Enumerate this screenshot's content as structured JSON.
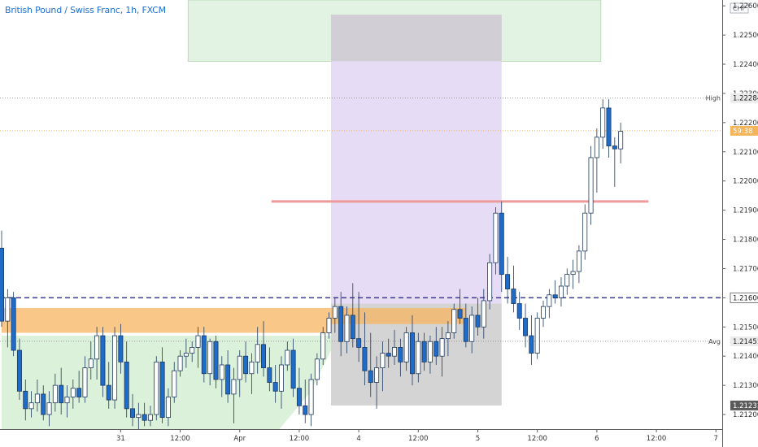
{
  "chart_data": {
    "type": "candlestick",
    "title": "British Pound / Swiss Franc, 1h, FXCM",
    "currency": "CHF",
    "colors": {
      "up": "#ffffff",
      "down": "#1f6bc8",
      "outline": "#1e3a60",
      "high_line": "#9a9a9a",
      "price_line": "#f3b45c",
      "resistance": "#ef9a9a",
      "dashed_level": "#3d3a8f",
      "target_zone": "#e3f3e3",
      "purple_zone": "#e6dcf5",
      "gray_zone": "#cfcfcf",
      "orange_band": "#f7b460",
      "green_fill": "#d6efd4"
    },
    "y_axis": {
      "ticks": [
        "1.22600",
        "1.22500",
        "1.22400",
        "1.22300",
        "1.22200",
        "1.22100",
        "1.22000",
        "1.21900",
        "1.21800",
        "1.21700",
        "1.21600",
        "1.21500",
        "1.21400",
        "1.21300",
        "1.21200"
      ],
      "ylim": [
        1.2115,
        1.2262
      ]
    },
    "x_axis": {
      "labels": [
        {
          "text": "31",
          "t": 30
        },
        {
          "text": "12:00",
          "t": 45
        },
        {
          "text": "Apr",
          "t": 60
        },
        {
          "text": "12:00",
          "t": 75
        },
        {
          "text": "4",
          "t": 90
        },
        {
          "text": "12:00",
          "t": 105
        },
        {
          "text": "5",
          "t": 120
        },
        {
          "text": "12:00",
          "t": 135
        },
        {
          "text": "6",
          "t": 150
        },
        {
          "text": "12:00",
          "t": 165
        },
        {
          "text": "7",
          "t": 180
        }
      ],
      "xlim": [
        0,
        182
      ]
    },
    "price_labels": [
      {
        "text": "1.22284",
        "value": 1.22284,
        "tag": "High",
        "style": "gray"
      },
      {
        "text": "59:38",
        "value": 1.22172,
        "style": "orange"
      },
      {
        "text": "1.21600",
        "value": 1.216,
        "style": "outline"
      },
      {
        "text": "1.21451",
        "value": 1.21451,
        "tag": "Avg",
        "style": "gray"
      },
      {
        "text": "1.21231",
        "value": 1.21231,
        "style": "dark"
      }
    ],
    "levels": {
      "high": 1.22284,
      "current_price": 1.22172,
      "resistance": {
        "value": 1.2193,
        "t_start": 68,
        "t_end": 163
      },
      "dashed": 1.216,
      "avg": 1.21451
    },
    "zones": [
      {
        "kind": "target",
        "t_start": 47,
        "t_end": 151,
        "y_top": 1.2262,
        "y_bottom": 1.2241
      },
      {
        "kind": "purple",
        "t_start": 83,
        "t_end": 126,
        "y_top": 1.2257,
        "y_bottom": 1.2158
      },
      {
        "kind": "gray",
        "t_start": 83,
        "t_end": 126,
        "y_top": 1.2158,
        "y_bottom": 1.21231
      },
      {
        "kind": "gray-top",
        "t_start": 83,
        "t_end": 126,
        "y_top": 1.2257,
        "y_bottom": 1.2241
      },
      {
        "kind": "orange",
        "t_start": 0,
        "t_end": 83,
        "y_top": 1.21565,
        "y_bottom": 1.2148
      },
      {
        "kind": "orange",
        "t_start": 83,
        "t_end": 117,
        "y_top": 1.21565,
        "y_bottom": 1.2151
      }
    ],
    "green_area": [
      [
        0,
        1.2147
      ],
      [
        0,
        1.2115
      ],
      [
        70,
        1.2115
      ],
      [
        78,
        1.2128
      ],
      [
        83,
        1.2142
      ],
      [
        83,
        1.2147
      ]
    ],
    "candles": [
      [
        0,
        1.2177,
        1.2183,
        1.215,
        1.2152
      ],
      [
        1.5,
        1.2152,
        1.2163,
        1.2143,
        1.216
      ],
      [
        3,
        1.216,
        1.2162,
        1.214,
        1.2142
      ],
      [
        4.5,
        1.2142,
        1.2146,
        1.2125,
        1.2128
      ],
      [
        6,
        1.2128,
        1.2132,
        1.2118,
        1.2122
      ],
      [
        7.5,
        1.2122,
        1.2128,
        1.2119,
        1.2124
      ],
      [
        9,
        1.2124,
        1.2132,
        1.2121,
        1.2127
      ],
      [
        10.5,
        1.2127,
        1.213,
        1.2118,
        1.212
      ],
      [
        12,
        1.212,
        1.2128,
        1.2116,
        1.2124
      ],
      [
        13.5,
        1.2124,
        1.2134,
        1.2121,
        1.213
      ],
      [
        15,
        1.213,
        1.2136,
        1.212,
        1.2124
      ],
      [
        16.5,
        1.2124,
        1.213,
        1.2119,
        1.2126
      ],
      [
        18,
        1.2126,
        1.2132,
        1.2122,
        1.2129
      ],
      [
        19.5,
        1.2129,
        1.2135,
        1.2124,
        1.2126
      ],
      [
        21,
        1.2126,
        1.214,
        1.2124,
        1.2136
      ],
      [
        22.5,
        1.2136,
        1.2145,
        1.2132,
        1.2139
      ],
      [
        24,
        1.2139,
        1.215,
        1.2132,
        1.2147
      ],
      [
        25.5,
        1.2147,
        1.215,
        1.2126,
        1.213
      ],
      [
        27,
        1.213,
        1.2138,
        1.2122,
        1.2125
      ],
      [
        28.5,
        1.2125,
        1.215,
        1.2122,
        1.2147
      ],
      [
        30,
        1.2147,
        1.2151,
        1.2134,
        1.2138
      ],
      [
        31.5,
        1.2138,
        1.2145,
        1.2119,
        1.2122
      ],
      [
        33,
        1.2122,
        1.2127,
        1.2116,
        1.2119
      ],
      [
        34.5,
        1.2119,
        1.2124,
        1.2115,
        1.212
      ],
      [
        36,
        1.212,
        1.2124,
        1.2116,
        1.2118
      ],
      [
        37.5,
        1.2118,
        1.2123,
        1.2116,
        1.212
      ],
      [
        39,
        1.212,
        1.214,
        1.2118,
        1.2138
      ],
      [
        40.5,
        1.2138,
        1.2143,
        1.2117,
        1.2119
      ],
      [
        42,
        1.2119,
        1.2129,
        1.2116,
        1.2126
      ],
      [
        43.5,
        1.2126,
        1.2138,
        1.2124,
        1.2135
      ],
      [
        45,
        1.2135,
        1.2142,
        1.2133,
        1.214
      ],
      [
        46.5,
        1.214,
        1.2146,
        1.2136,
        1.2141
      ],
      [
        48,
        1.2141,
        1.2145,
        1.2138,
        1.2143
      ],
      [
        49.5,
        1.2143,
        1.215,
        1.2136,
        1.2147
      ],
      [
        51,
        1.2147,
        1.215,
        1.2131,
        1.2134
      ],
      [
        52.5,
        1.2134,
        1.2146,
        1.213,
        1.2145
      ],
      [
        54,
        1.2145,
        1.2147,
        1.2129,
        1.2132
      ],
      [
        55.5,
        1.2132,
        1.214,
        1.2126,
        1.2137
      ],
      [
        57,
        1.2137,
        1.2142,
        1.2124,
        1.2127
      ],
      [
        58.5,
        1.2127,
        1.2136,
        1.2117,
        1.2132
      ],
      [
        60,
        1.2132,
        1.2142,
        1.2126,
        1.214
      ],
      [
        61.5,
        1.214,
        1.2145,
        1.2131,
        1.2134
      ],
      [
        63,
        1.2134,
        1.2141,
        1.2127,
        1.2138
      ],
      [
        64.5,
        1.2138,
        1.215,
        1.2134,
        1.2144
      ],
      [
        66,
        1.2144,
        1.2152,
        1.2133,
        1.2136
      ],
      [
        67.5,
        1.2136,
        1.2143,
        1.2128,
        1.2131
      ],
      [
        69,
        1.2131,
        1.2137,
        1.2124,
        1.2128
      ],
      [
        70.5,
        1.2128,
        1.214,
        1.2122,
        1.2137
      ],
      [
        72,
        1.2137,
        1.2145,
        1.2135,
        1.2142
      ],
      [
        73.5,
        1.2142,
        1.2146,
        1.2126,
        1.2129
      ],
      [
        75,
        1.2129,
        1.2136,
        1.212,
        1.2123
      ],
      [
        76.5,
        1.2123,
        1.2132,
        1.2117,
        1.212
      ],
      [
        78,
        1.212,
        1.2134,
        1.2116,
        1.2132
      ],
      [
        79.5,
        1.2132,
        1.2141,
        1.213,
        1.2139
      ],
      [
        81,
        1.2139,
        1.215,
        1.2137,
        1.2148
      ],
      [
        82.5,
        1.2148,
        1.2155,
        1.2146,
        1.2153
      ],
      [
        84,
        1.2153,
        1.216,
        1.2148,
        1.2157
      ],
      [
        85.5,
        1.2157,
        1.2162,
        1.214,
        1.2145
      ],
      [
        87,
        1.2145,
        1.2157,
        1.2141,
        1.2154
      ],
      [
        88.5,
        1.2154,
        1.2165,
        1.2143,
        1.2146
      ],
      [
        90,
        1.2146,
        1.2162,
        1.2138,
        1.2143
      ],
      [
        91.5,
        1.2143,
        1.2155,
        1.213,
        1.2135
      ],
      [
        93,
        1.2135,
        1.2148,
        1.2126,
        1.2131
      ],
      [
        94.5,
        1.2131,
        1.214,
        1.2122,
        1.2136
      ],
      [
        96,
        1.2136,
        1.2145,
        1.2128,
        1.2141
      ],
      [
        97.5,
        1.2141,
        1.2146,
        1.2136,
        1.214
      ],
      [
        99,
        1.214,
        1.2149,
        1.2137,
        1.2143
      ],
      [
        100.5,
        1.2143,
        1.2146,
        1.2133,
        1.2138
      ],
      [
        102,
        1.2138,
        1.215,
        1.2135,
        1.2148
      ],
      [
        103.5,
        1.2148,
        1.2154,
        1.213,
        1.2134
      ],
      [
        105,
        1.2134,
        1.2148,
        1.2131,
        1.2145
      ],
      [
        106.5,
        1.2145,
        1.2148,
        1.2135,
        1.2138
      ],
      [
        108,
        1.2138,
        1.2147,
        1.2134,
        1.2145
      ],
      [
        109.5,
        1.2145,
        1.215,
        1.2137,
        1.214
      ],
      [
        111,
        1.214,
        1.215,
        1.2133,
        1.2146
      ],
      [
        112.5,
        1.2146,
        1.2152,
        1.214,
        1.2148
      ],
      [
        114,
        1.2148,
        1.2158,
        1.2146,
        1.2156
      ],
      [
        115.5,
        1.2156,
        1.2163,
        1.2151,
        1.2153
      ],
      [
        117,
        1.2153,
        1.2158,
        1.2143,
        1.2145
      ],
      [
        118.5,
        1.2145,
        1.2157,
        1.2141,
        1.2154
      ],
      [
        120,
        1.2154,
        1.216,
        1.2147,
        1.215
      ],
      [
        121.5,
        1.215,
        1.2163,
        1.2146,
        1.2159
      ],
      [
        123,
        1.2159,
        1.2175,
        1.2156,
        1.2172
      ],
      [
        124.5,
        1.2172,
        1.2191,
        1.2168,
        1.2189
      ],
      [
        126,
        1.2189,
        1.2193,
        1.2162,
        1.2168
      ],
      [
        127.5,
        1.2168,
        1.2174,
        1.2158,
        1.2163
      ],
      [
        129,
        1.2163,
        1.2171,
        1.2155,
        1.2158
      ],
      [
        130.5,
        1.2158,
        1.2162,
        1.2149,
        1.2153
      ],
      [
        132,
        1.2153,
        1.2158,
        1.2143,
        1.2147
      ],
      [
        133.5,
        1.2147,
        1.2154,
        1.2137,
        1.2141
      ],
      [
        135,
        1.2141,
        1.2155,
        1.2139,
        1.2153
      ],
      [
        136.5,
        1.2153,
        1.2159,
        1.215,
        1.2157
      ],
      [
        138,
        1.2157,
        1.2163,
        1.2153,
        1.2161
      ],
      [
        139.5,
        1.2161,
        1.2166,
        1.2158,
        1.216
      ],
      [
        141,
        1.216,
        1.2167,
        1.2157,
        1.2164
      ],
      [
        142.5,
        1.2164,
        1.217,
        1.2161,
        1.2168
      ],
      [
        144,
        1.2168,
        1.2173,
        1.2163,
        1.2169
      ],
      [
        145.5,
        1.2169,
        1.2178,
        1.2165,
        1.2176
      ],
      [
        147,
        1.2176,
        1.2192,
        1.2173,
        1.2189
      ],
      [
        148.5,
        1.2189,
        1.2212,
        1.2185,
        1.2208
      ],
      [
        150,
        1.2208,
        1.2218,
        1.2196,
        1.2215
      ],
      [
        151.5,
        1.2215,
        1.2228,
        1.2211,
        1.2225
      ],
      [
        153,
        1.2225,
        1.2228,
        1.2208,
        1.2212
      ],
      [
        154.5,
        1.2212,
        1.2215,
        1.2198,
        1.2211
      ],
      [
        156,
        1.2211,
        1.222,
        1.2206,
        1.2217
      ]
    ]
  }
}
